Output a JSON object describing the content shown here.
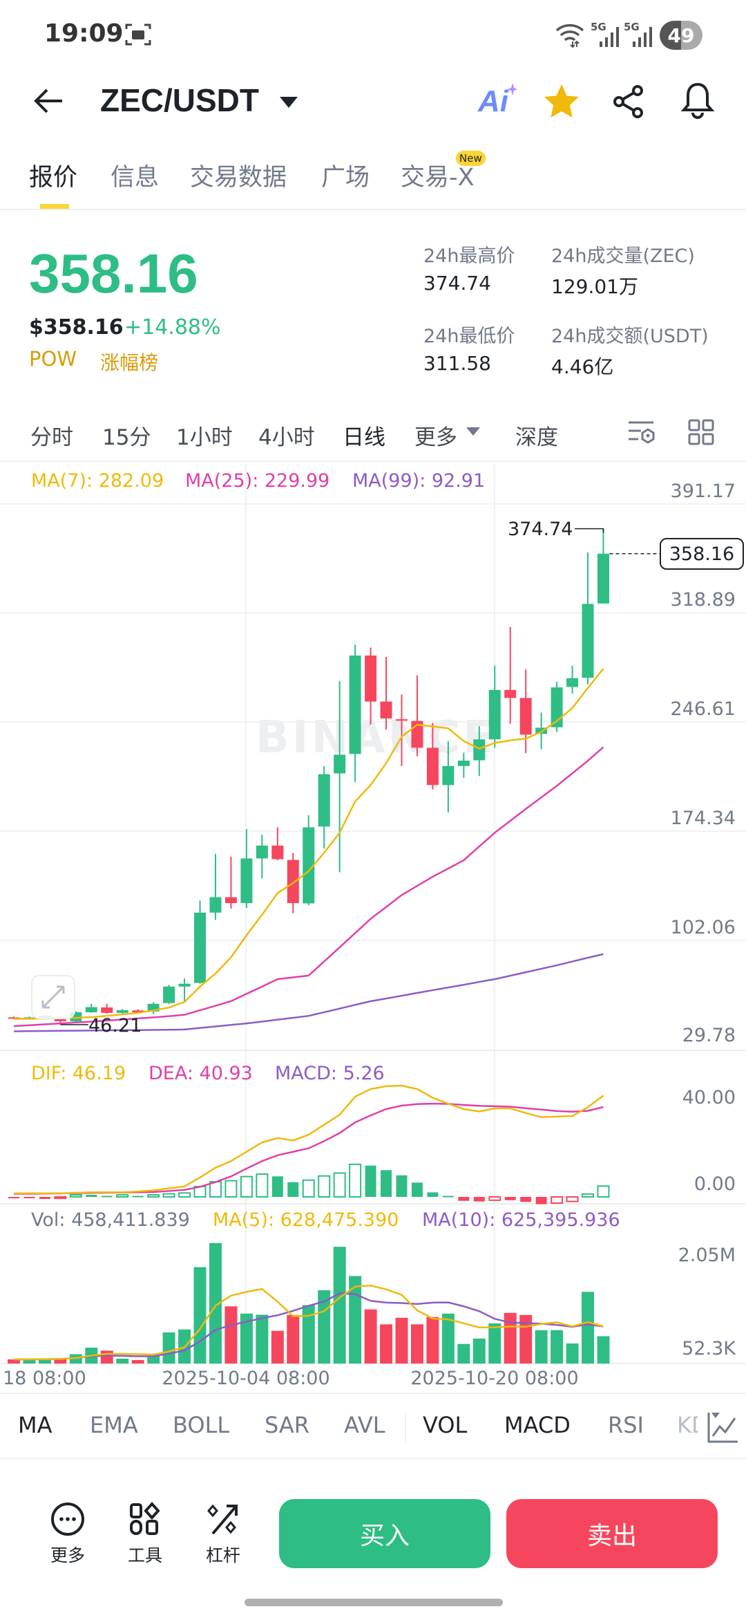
{
  "status_bar": {
    "time": "19:09",
    "signal1": "5G",
    "signal2": "5G",
    "battery": "49"
  },
  "header": {
    "pair": "ZEC/USDT",
    "ai_label": "Ai",
    "icons": [
      "back-arrow-icon",
      "dropdown-icon",
      "ai-icon",
      "star-icon",
      "share-icon",
      "bell-icon"
    ]
  },
  "tabs": [
    {
      "label": "报价",
      "active": true
    },
    {
      "label": "信息"
    },
    {
      "label": "交易数据"
    },
    {
      "label": "广场"
    },
    {
      "label": "交易-X",
      "badge": "New"
    }
  ],
  "ticker": {
    "last_price": "358.16",
    "usd_price": "$358.16",
    "change": "+14.88%",
    "tag": "POW",
    "rank_link": "涨幅榜",
    "stats": [
      {
        "label": "24h最高价",
        "value": "374.74"
      },
      {
        "label": "24h成交量(ZEC)",
        "value": "129.01万"
      },
      {
        "label": "24h最低价",
        "value": "311.58"
      },
      {
        "label": "24h成交额(USDT)",
        "value": "4.46亿"
      }
    ]
  },
  "intervals": [
    {
      "label": "分时"
    },
    {
      "label": "15分"
    },
    {
      "label": "1小时"
    },
    {
      "label": "4小时"
    },
    {
      "label": "日线",
      "active": true
    },
    {
      "label": "更多"
    },
    {
      "label": "深度"
    }
  ],
  "colors": {
    "up": "#2ebd85",
    "down": "#f6465d",
    "accent": "#f0b90b",
    "ma7": "#f0b90b",
    "ma25": "#e040a6",
    "ma99": "#8d5bc6"
  },
  "legends": {
    "ma7": "MA(7): 282.09",
    "ma25": "MA(25): 229.99",
    "ma99": "MA(99): 92.91",
    "dif": "DIF: 46.19",
    "dea": "DEA: 40.93",
    "macd": "MACD: 5.26",
    "vol": "Vol: 458,411.839",
    "vol_ma5": "MA(5): 628,475.390",
    "vol_ma10": "MA(10): 625,395.936"
  },
  "watermark": "BINANCE",
  "chart_data": {
    "type": "candlestick",
    "price_axis_ticks": [
      "391.17",
      "318.89",
      "246.61",
      "174.34",
      "102.06",
      "29.78"
    ],
    "ylim": [
      29.78,
      391.17
    ],
    "current_price_label": "358.16",
    "high_label": "374.74",
    "low_label": "46.21",
    "macd_axis_ticks": [
      "40.00",
      "0.00"
    ],
    "volume_axis_ticks": [
      "2.05M",
      "52.3K"
    ],
    "x_tick_labels": [
      "18 08:00",
      "2025-10-04 08:00",
      "2025-10-20 08:00"
    ],
    "candles_ohlc": [
      [
        51,
        51.5,
        50,
        50.3
      ],
      [
        50.2,
        51.5,
        49.8,
        51
      ],
      [
        51,
        52.5,
        50.5,
        52
      ],
      [
        50.2,
        51,
        46.21,
        48.4
      ],
      [
        48.4,
        55,
        48,
        54.4
      ],
      [
        54.4,
        60,
        54,
        57.8
      ],
      [
        57.6,
        60,
        53.5,
        54
      ],
      [
        54,
        56.5,
        53.5,
        55.8
      ],
      [
        55.6,
        56.4,
        53.7,
        54.4
      ],
      [
        54.9,
        61,
        53.2,
        60
      ],
      [
        60.5,
        72.6,
        59.8,
        71.4
      ],
      [
        71.4,
        76.8,
        61,
        73.3
      ],
      [
        73.8,
        128.4,
        73.3,
        120.4
      ],
      [
        120.4,
        159.2,
        115.6,
        130.6
      ],
      [
        130.6,
        157.5,
        123.1,
        126.7
      ],
      [
        126.7,
        175.7,
        123.6,
        156.3
      ],
      [
        156.3,
        172,
        143,
        164.8
      ],
      [
        164.8,
        176.9,
        155.1,
        155.8
      ],
      [
        155.3,
        159.9,
        120,
        126.7
      ],
      [
        126.5,
        184.9,
        125.3,
        176.9
      ],
      [
        177.4,
        217.5,
        162.9,
        212.1
      ],
      [
        212.6,
        273.8,
        147.1,
        225
      ],
      [
        225.5,
        297.8,
        206.8,
        290.7
      ],
      [
        290.7,
        296,
        245,
        260.2
      ],
      [
        260.2,
        289.8,
        241.7,
        249
      ],
      [
        248.5,
        264.8,
        217.5,
        247.5
      ],
      [
        247.3,
        277.6,
        224,
        229.6
      ],
      [
        229.6,
        246.1,
        202,
        204.9
      ],
      [
        204.9,
        233.9,
        186.7,
        217.5
      ],
      [
        217.5,
        226.4,
        209.7,
        221.1
      ],
      [
        221.3,
        243.9,
        210.9,
        235.2
      ],
      [
        235.2,
        284,
        229.6,
        267.9
      ],
      [
        267.9,
        309.6,
        245.6,
        262.6
      ],
      [
        262.6,
        281.5,
        226,
        238.3
      ],
      [
        238.8,
        252.9,
        228.6,
        242.9
      ],
      [
        243.2,
        273.3,
        240,
        269.6
      ],
      [
        269.9,
        284,
        265.5,
        275.7
      ],
      [
        275.9,
        358.9,
        271.6,
        324.9
      ],
      [
        325.2,
        374.74,
        325.2,
        358.16
      ]
    ],
    "ma7": [
      50,
      50.1,
      50.2,
      50.4,
      50.7,
      51.2,
      52,
      53,
      54,
      55.6,
      57.5,
      61.2,
      71.4,
      80,
      90.8,
      105.4,
      119,
      133.3,
      140,
      147.9,
      160,
      173.3,
      194,
      204.9,
      219.4,
      236.9,
      244.9,
      243.7,
      242.5,
      234,
      229.1,
      232.8,
      234.5,
      235.7,
      240.1,
      247.4,
      255.9,
      269.2,
      282.09
    ],
    "ma25": [
      45.2,
      45.8,
      46.4,
      47,
      47.6,
      48.2,
      48.9,
      49.6,
      50.3,
      51,
      51.8,
      52.7,
      55.7,
      58.7,
      61.7,
      66.6,
      71.4,
      76.3,
      77.5,
      78.7,
      88,
      97.4,
      106.8,
      116.3,
      124.1,
      132,
      138.1,
      144.2,
      149.6,
      155.1,
      164.2,
      173.3,
      181.2,
      189.1,
      196.7,
      204.4,
      212.7,
      221,
      229.99
    ],
    "ma99": [
      41.8,
      41.9,
      42,
      42.1,
      42.2,
      42.3,
      42.4,
      42.5,
      42.6,
      42.7,
      42.8,
      43,
      44,
      45,
      46,
      47,
      48.2,
      49.5,
      50.7,
      52,
      54.4,
      56.8,
      59.3,
      61.7,
      63.5,
      65.3,
      67.2,
      69,
      70.8,
      72.6,
      74.5,
      76.3,
      78.6,
      80.9,
      83.2,
      85.5,
      88,
      90.5,
      92.91
    ],
    "dif": [
      1.3,
      1.3,
      1.3,
      1.3,
      1.5,
      1.8,
      1.8,
      1.8,
      2.2,
      2.7,
      3.6,
      4.5,
      8.6,
      13.1,
      16.1,
      20.4,
      24.7,
      26.7,
      25.6,
      28.2,
      32.8,
      37.4,
      45.7,
      49.2,
      50.5,
      50.8,
      49.2,
      45.2,
      42.5,
      40,
      38.9,
      40.3,
      40.3,
      38.2,
      36.3,
      36.6,
      36.8,
      40.9,
      46.19
    ],
    "dea": [
      1.1,
      1.1,
      1.2,
      1.3,
      1.4,
      1.5,
      1.6,
      1.7,
      1.8,
      1.9,
      2.4,
      2.9,
      4.3,
      6.5,
      9.1,
      12.7,
      16.1,
      18.8,
      20.4,
      22,
      25.3,
      29,
      33.9,
      37.1,
      40,
      41.6,
      42.3,
      42.5,
      42.4,
      41.9,
      41.5,
      41.3,
      41.1,
      40.4,
      39.8,
      39.1,
      38.8,
      39.2,
      40.93
    ],
    "macd_hist": [
      -0.5,
      -0.5,
      -1,
      -0.7,
      1,
      1,
      0.5,
      1,
      0.5,
      1,
      1.5,
      1.9,
      5,
      7.3,
      7.8,
      9.8,
      11,
      9.9,
      7.1,
      8.1,
      10.1,
      11.5,
      15.7,
      15.1,
      12.9,
      10.4,
      6.9,
      2.2,
      0.5,
      -1.9,
      -2.2,
      -1.6,
      -1.6,
      -2.4,
      -3.5,
      -3,
      -2.2,
      1.4,
      5.26
    ],
    "volume": [
      70000,
      70000,
      79000,
      90000,
      157000,
      267000,
      216000,
      82000,
      59000,
      130000,
      522000,
      572000,
      1618000,
      2022000,
      960000,
      838000,
      819000,
      549000,
      815000,
      980000,
      1230000,
      1959000,
      1469000,
      909000,
      658000,
      768000,
      658000,
      780000,
      838000,
      329000,
      419000,
      674000,
      850000,
      815000,
      560000,
      560000,
      337000,
      1203000,
      458411.839
    ]
  },
  "indicator_tabs": [
    {
      "label": "MA",
      "active": true
    },
    {
      "label": "EMA"
    },
    {
      "label": "BOLL"
    },
    {
      "label": "SAR"
    },
    {
      "label": "AVL"
    },
    {
      "label": "VOL",
      "active": true
    },
    {
      "label": "MACD",
      "active": true
    },
    {
      "label": "RSI"
    },
    {
      "label": "KD"
    }
  ],
  "bottom_bar": {
    "more": "更多",
    "tools": "工具",
    "leverage": "杠杆",
    "buy": "买入",
    "sell": "卖出"
  }
}
